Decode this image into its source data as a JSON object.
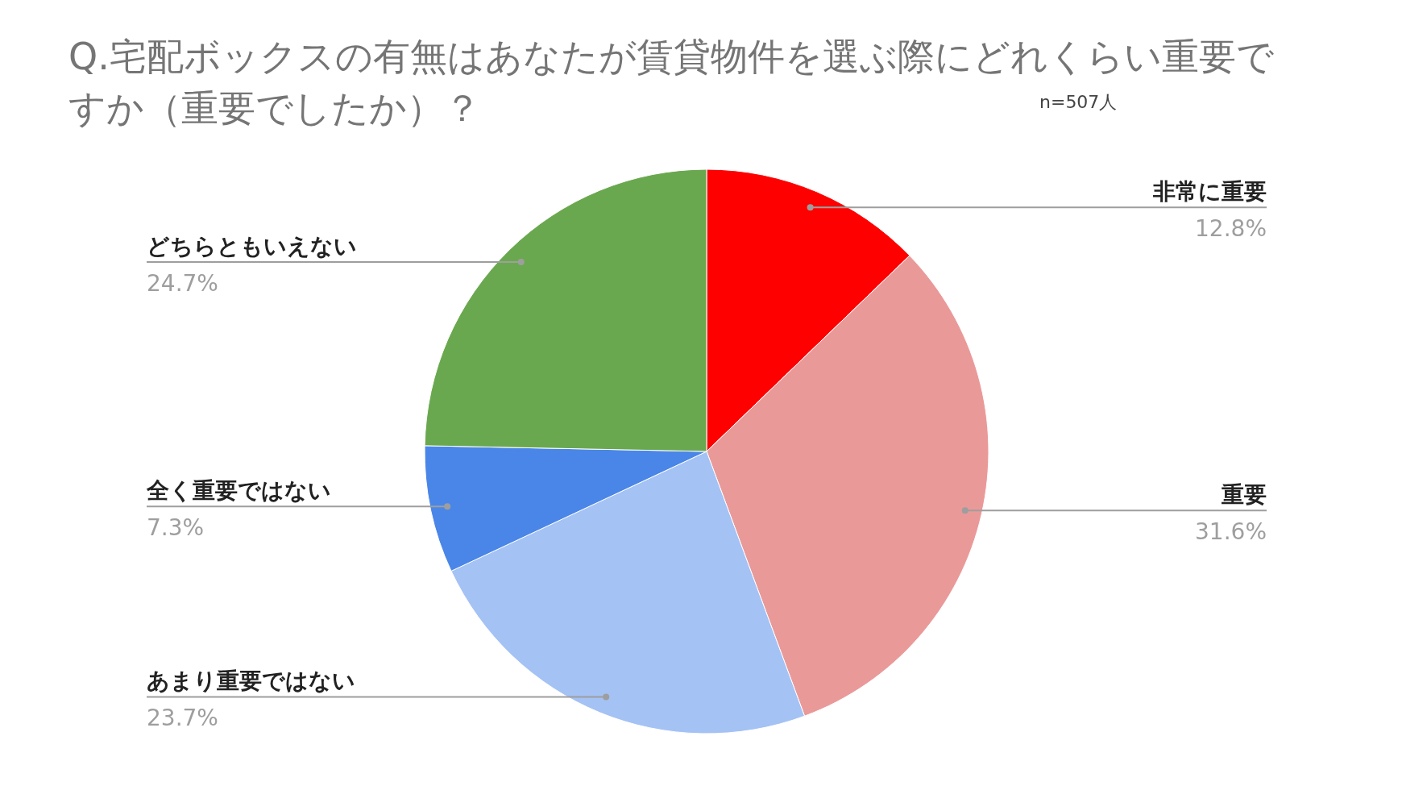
{
  "chart_data": {
    "type": "pie",
    "title": "Q.宅配ボックスの有無はあなたが賃貸物件を選ぶ際にどれくらい重要ですか（重要でしたか）？",
    "annotations": [
      "n=507人"
    ],
    "categories": [
      "非常に重要",
      "重要",
      "あまり重要ではない",
      "全く重要ではない",
      "どちらともいえない"
    ],
    "values": [
      12.8,
      31.6,
      23.7,
      7.3,
      24.7
    ],
    "value_labels": [
      "12.8%",
      "31.6%",
      "23.7%",
      "7.3%",
      "24.7%"
    ],
    "colors": [
      "#ff0000",
      "#ea9999",
      "#a4c2f4",
      "#4a86e8",
      "#6aa84f"
    ],
    "legend": false
  }
}
